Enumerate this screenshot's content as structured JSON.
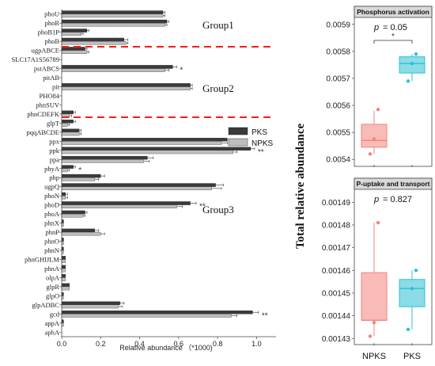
{
  "chart_data": [
    {
      "type": "bar",
      "orientation": "horizontal",
      "categories": [
        "phoU",
        "phoR",
        "phoB1P",
        "phoB",
        "ugpABCE",
        "SLC17A1S56789",
        "pstABCS",
        "pitAB",
        "pit",
        "PHO84",
        "phnSUV",
        "phnCDEFK",
        "glpT",
        "pqqABCDE",
        "ppx",
        "ppk",
        "ppa",
        "phyA",
        "php",
        "ugpQ",
        "phoN",
        "phoD",
        "phoA",
        "phnX",
        "phnP",
        "phnO",
        "phnN",
        "phnGHIJLM",
        "phnA",
        "olpA",
        "glpR",
        "glpO",
        "glpADBC",
        "gcd",
        "appA",
        "aphA"
      ],
      "series": [
        {
          "name": "PKS",
          "values": [
            0.52,
            0.54,
            0.13,
            0.32,
            0.12,
            0,
            0.57,
            0,
            0.66,
            0,
            0,
            0.06,
            0.06,
            0.09,
            0.85,
            0.97,
            0.44,
            0.06,
            0.2,
            0.79,
            0.02,
            0.66,
            0.12,
            0.01,
            0.17,
            0.01,
            0.01,
            0.02,
            0.02,
            0.02,
            0.04,
            0.01,
            0.3,
            0.98,
            0.01,
            0
          ]
        },
        {
          "name": "NPKS",
          "values": [
            0.52,
            0.53,
            0.1,
            0.33,
            0.13,
            0,
            0.53,
            0,
            0.66,
            0,
            0,
            0.04,
            0.03,
            0.09,
            0.82,
            0.88,
            0.42,
            0.03,
            0.17,
            0.77,
            0.02,
            0.59,
            0.11,
            0.01,
            0.2,
            0.01,
            0.01,
            0.02,
            0.02,
            0.02,
            0.04,
            0.01,
            0.29,
            0.87,
            0.01,
            0
          ]
        }
      ],
      "errors": [
        [
          0.01,
          0.01,
          0.01,
          0.02,
          0.01,
          0,
          0.02,
          0,
          0.01,
          0,
          0,
          0.01,
          0.01,
          0.01,
          0.04,
          0.02,
          0.03,
          0.01,
          0.02,
          0.04,
          0.01,
          0.03,
          0.01,
          0,
          0.02,
          0,
          0,
          0,
          0,
          0,
          0,
          0,
          0.02,
          0.03,
          0,
          0
        ],
        [
          0.01,
          0.01,
          0.01,
          0.01,
          0.01,
          0,
          0.02,
          0,
          0.01,
          0,
          0,
          0.01,
          0.01,
          0.01,
          0.03,
          0.02,
          0.03,
          0.01,
          0.02,
          0.05,
          0.01,
          0.03,
          0.01,
          0,
          0.02,
          0,
          0,
          0,
          0,
          0,
          0,
          0,
          0.02,
          0.03,
          0,
          0
        ]
      ],
      "significance": {
        "pstABCS": "*",
        "ppk": "**",
        "phyA": "*",
        "phoD": "**",
        "gcd": "**"
      },
      "groups": [
        "Group1",
        "Group2",
        "Group3"
      ],
      "xlabel": "Relative abundance （*1000)",
      "xlim": [
        0,
        1.1
      ],
      "xticks": [
        "0.0",
        "0.2",
        "0.4",
        "0.6",
        "0.8",
        "1.0"
      ],
      "colors": {
        "PKS": "#3a3a3a",
        "NPKS": "#bdbdbd",
        "divider": "#ff1a1a"
      },
      "legend": "right"
    },
    {
      "type": "box",
      "title": "Phosphorus activation",
      "categories": [
        "NPKS",
        "PKS"
      ],
      "ylabel": "Total relative abundance",
      "ylim": [
        0.00538,
        0.00592
      ],
      "yticks": [
        "0.0054",
        "0.0055",
        "0.0056",
        "0.0057",
        "0.0058",
        "0.0059"
      ],
      "pvalue": "= 0.05",
      "sig": "*",
      "boxes": [
        {
          "name": "NPKS",
          "q1": 0.005445,
          "median": 0.00547,
          "q3": 0.00553,
          "min": 0.00542,
          "max": 0.00558,
          "points": [
            0.00542,
            0.005475,
            0.005585
          ],
          "color": "#f4837c"
        },
        {
          "name": "PKS",
          "q1": 0.00572,
          "median": 0.005755,
          "q3": 0.00578,
          "min": 0.00569,
          "max": 0.00579,
          "points": [
            0.00569,
            0.005755,
            0.00579
          ],
          "color": "#2cc0d4"
        }
      ]
    },
    {
      "type": "box",
      "title": "P-uptake and transport",
      "categories": [
        "NPKS",
        "PKS"
      ],
      "ylim": [
        0.001428,
        0.001495
      ],
      "yticks": [
        "0.00143",
        "0.00144",
        "0.00145",
        "0.00146",
        "0.00147",
        "0.00148",
        "0.00149"
      ],
      "pvalue": "= 0.827",
      "boxes": [
        {
          "name": "NPKS",
          "q1": 0.001438,
          "median": 0.001438,
          "q3": 0.001459,
          "min": 0.001431,
          "max": 0.001481,
          "points": [
            0.001431,
            0.001437,
            0.001481
          ],
          "color": "#f4837c"
        },
        {
          "name": "PKS",
          "q1": 0.001444,
          "median": 0.001452,
          "q3": 0.001456,
          "min": 0.001434,
          "max": 0.00146,
          "points": [
            0.001434,
            0.001452,
            0.00146
          ],
          "color": "#2cc0d4"
        }
      ]
    }
  ]
}
